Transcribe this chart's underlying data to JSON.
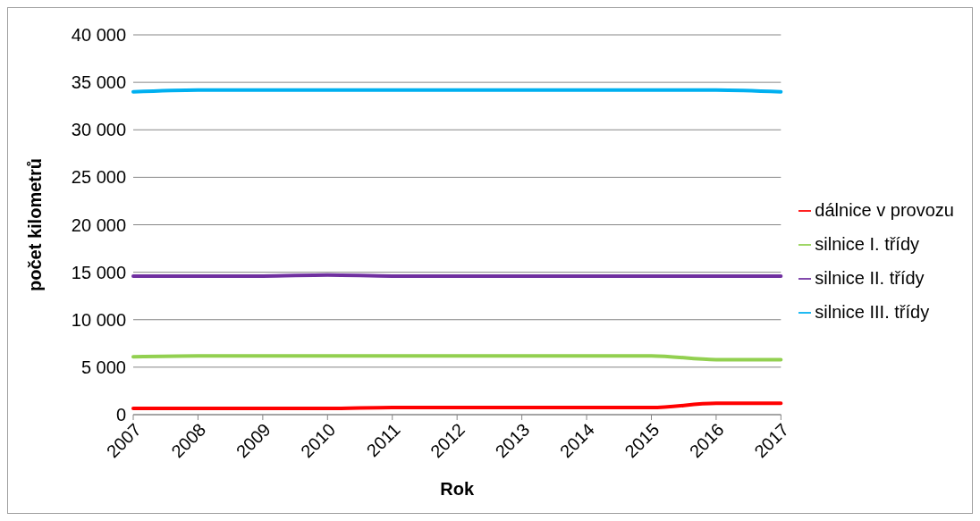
{
  "chart_data": {
    "type": "line",
    "xlabel": "Rok",
    "ylabel": "počet kilometrů",
    "categories": [
      "2007",
      "2008",
      "2009",
      "2010",
      "2011",
      "2012",
      "2013",
      "2014",
      "2015",
      "2016",
      "2017"
    ],
    "series": [
      {
        "name": "dálnice v provozu",
        "color": "#ff0000",
        "values": [
          650,
          650,
          650,
          650,
          750,
          750,
          750,
          750,
          750,
          1200,
          1200
        ]
      },
      {
        "name": "silnice I. třídy",
        "color": "#92d050",
        "values": [
          6100,
          6200,
          6200,
          6200,
          6200,
          6200,
          6200,
          6200,
          6200,
          5800,
          5800
        ]
      },
      {
        "name": "silnice II. třídy",
        "color": "#7030a0",
        "values": [
          14600,
          14600,
          14600,
          14700,
          14600,
          14600,
          14600,
          14600,
          14600,
          14600,
          14600
        ]
      },
      {
        "name": "silnice III. třídy",
        "color": "#00b0f0",
        "values": [
          34000,
          34200,
          34200,
          34200,
          34200,
          34200,
          34200,
          34200,
          34200,
          34200,
          34000
        ]
      }
    ],
    "ylim": [
      0,
      40000
    ],
    "yticks": [
      {
        "value": 0,
        "label": "0"
      },
      {
        "value": 5000,
        "label": "5 000"
      },
      {
        "value": 10000,
        "label": "10 000"
      },
      {
        "value": 15000,
        "label": "15 000"
      },
      {
        "value": 20000,
        "label": "20 000"
      },
      {
        "value": 25000,
        "label": "25 000"
      },
      {
        "value": 30000,
        "label": "30 000"
      },
      {
        "value": 35000,
        "label": "35 000"
      },
      {
        "value": 40000,
        "label": "40 000"
      }
    ],
    "grid": "y",
    "legend": "right",
    "marker": "none",
    "line_style": "solid"
  }
}
